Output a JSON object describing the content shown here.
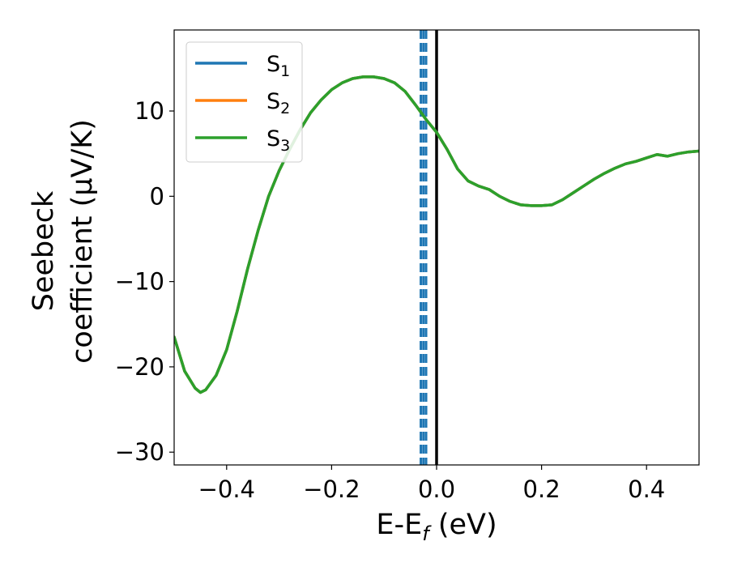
{
  "chart_data": {
    "type": "line",
    "xlabel": {
      "main": "E-E",
      "sub": "f",
      "tail": " (eV)"
    },
    "ylabel": {
      "line1": "Seebeck",
      "line2": "coefficient  (μV/K)"
    },
    "xlim": [
      -0.5,
      0.5
    ],
    "ylim": [
      -31.5,
      19.5
    ],
    "xticks": [
      -0.4,
      -0.2,
      0.0,
      0.2,
      0.4
    ],
    "xtick_labels": [
      "−0.4",
      "−0.2",
      "0.0",
      "0.2",
      "0.4"
    ],
    "yticks": [
      -30,
      -20,
      -10,
      0,
      10
    ],
    "ytick_labels": [
      "−30",
      "−20",
      "−10",
      "0",
      "10"
    ],
    "grid": false,
    "legend_position": "top-left",
    "vertical_lines": [
      {
        "x": 0.0,
        "color": "#000000",
        "style": "solid"
      },
      {
        "x": -0.03,
        "color": "#1f77b4",
        "style": "dashed"
      },
      {
        "x": -0.025,
        "color": "#1f77b4",
        "style": "dashed"
      },
      {
        "x": -0.02,
        "color": "#1f77b4",
        "style": "dashed"
      }
    ],
    "x": [
      -0.5,
      -0.48,
      -0.46,
      -0.45,
      -0.44,
      -0.42,
      -0.4,
      -0.38,
      -0.36,
      -0.34,
      -0.32,
      -0.3,
      -0.28,
      -0.26,
      -0.24,
      -0.22,
      -0.2,
      -0.18,
      -0.16,
      -0.14,
      -0.12,
      -0.1,
      -0.08,
      -0.06,
      -0.04,
      -0.02,
      0.0,
      0.02,
      0.04,
      0.06,
      0.08,
      0.1,
      0.12,
      0.14,
      0.16,
      0.18,
      0.2,
      0.22,
      0.24,
      0.26,
      0.28,
      0.3,
      0.32,
      0.34,
      0.36,
      0.38,
      0.4,
      0.42,
      0.44,
      0.46,
      0.48,
      0.5
    ],
    "series": [
      {
        "name_main": "S",
        "name_sub": "1",
        "color": "#1f77b4",
        "values": [
          -16.5,
          -20.5,
          -22.5,
          -23.0,
          -22.7,
          -21.0,
          -18.0,
          -13.5,
          -8.5,
          -4.0,
          0.0,
          3.0,
          5.5,
          7.8,
          9.8,
          11.3,
          12.5,
          13.3,
          13.8,
          14.0,
          14.0,
          13.8,
          13.3,
          12.3,
          10.7,
          9.0,
          7.5,
          5.5,
          3.2,
          1.8,
          1.2,
          0.8,
          0.0,
          -0.6,
          -1.0,
          -1.1,
          -1.1,
          -1.0,
          -0.4,
          0.4,
          1.2,
          2.0,
          2.7,
          3.3,
          3.8,
          4.1,
          4.5,
          4.9,
          4.7,
          5.0,
          5.2,
          5.3
        ]
      },
      {
        "name_main": "S",
        "name_sub": "2",
        "color": "#ff7f0e",
        "values": [
          -16.5,
          -20.5,
          -22.5,
          -23.0,
          -22.7,
          -21.0,
          -18.0,
          -13.5,
          -8.5,
          -4.0,
          0.0,
          3.0,
          5.5,
          7.8,
          9.8,
          11.3,
          12.5,
          13.3,
          13.8,
          14.0,
          14.0,
          13.8,
          13.3,
          12.3,
          10.7,
          9.0,
          7.5,
          5.5,
          3.2,
          1.8,
          1.2,
          0.8,
          0.0,
          -0.6,
          -1.0,
          -1.1,
          -1.1,
          -1.0,
          -0.4,
          0.4,
          1.2,
          2.0,
          2.7,
          3.3,
          3.8,
          4.1,
          4.5,
          4.9,
          4.7,
          5.0,
          5.2,
          5.3
        ]
      },
      {
        "name_main": "S",
        "name_sub": "3",
        "color": "#2ca02c",
        "values": [
          -16.5,
          -20.5,
          -22.5,
          -23.0,
          -22.7,
          -21.0,
          -18.0,
          -13.5,
          -8.5,
          -4.0,
          0.0,
          3.0,
          5.5,
          7.8,
          9.8,
          11.3,
          12.5,
          13.3,
          13.8,
          14.0,
          14.0,
          13.8,
          13.3,
          12.3,
          10.7,
          9.0,
          7.5,
          5.5,
          3.2,
          1.8,
          1.2,
          0.8,
          0.0,
          -0.6,
          -1.0,
          -1.1,
          -1.1,
          -1.0,
          -0.4,
          0.4,
          1.2,
          2.0,
          2.7,
          3.3,
          3.8,
          4.1,
          4.5,
          4.9,
          4.7,
          5.0,
          5.2,
          5.3
        ]
      }
    ]
  }
}
